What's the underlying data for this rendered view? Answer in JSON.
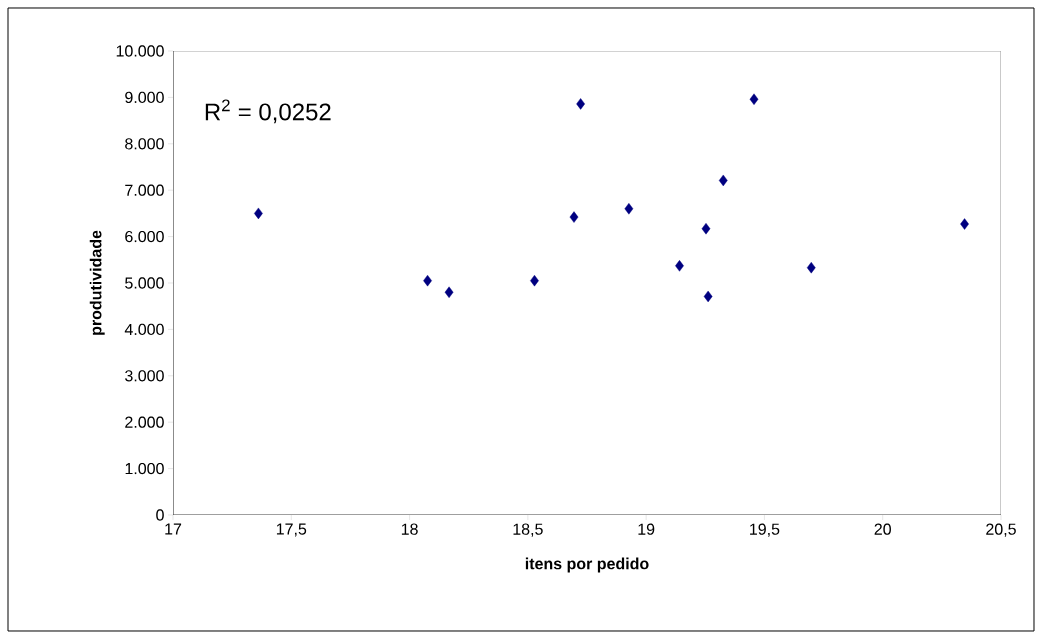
{
  "chart_data": {
    "type": "scatter",
    "xlabel": "itens por pedido",
    "ylabel": "produtividade",
    "annotations": [
      "R$^{2}$ = 0,0252"
    ],
    "series": [
      {
        "color": "#000080",
        "x": [
          17.361,
          18.076,
          18.167,
          18.528,
          18.695,
          18.723,
          18.927,
          19.141,
          19.253,
          19.262,
          19.326,
          19.456,
          19.698,
          20.346
        ],
        "values": [
          6500,
          5050,
          4800,
          5050,
          6420,
          8860,
          6600,
          5370,
          6170,
          4710,
          7210,
          8960,
          5330,
          6270
        ]
      }
    ],
    "marker": "diamond",
    "grid": false,
    "xlim": [
      17,
      20.5
    ],
    "ylim": [
      0,
      10000
    ],
    "xticks": [
      17,
      {
        "value": 17.5,
        "label": "17,5"
      },
      18,
      {
        "value": 18.5,
        "label": "18,5"
      },
      19,
      {
        "value": 19.5,
        "label": "19,5"
      },
      20,
      {
        "value": 20.5,
        "label": "20,5"
      }
    ],
    "yticks": [
      0,
      {
        "value": 1000,
        "label": "1.000"
      },
      {
        "value": 2000,
        "label": "2.000"
      },
      {
        "value": 3000,
        "label": "3.000"
      },
      {
        "value": 4000,
        "label": "4.000"
      },
      {
        "value": 5000,
        "label": "5.000"
      },
      {
        "value": 6000,
        "label": "6.000"
      },
      {
        "value": 7000,
        "label": "7.000"
      },
      {
        "value": 8000,
        "label": "8.000"
      },
      {
        "value": 9000,
        "label": "9.000"
      },
      {
        "value": 10000,
        "label": "10.000"
      }
    ]
  }
}
